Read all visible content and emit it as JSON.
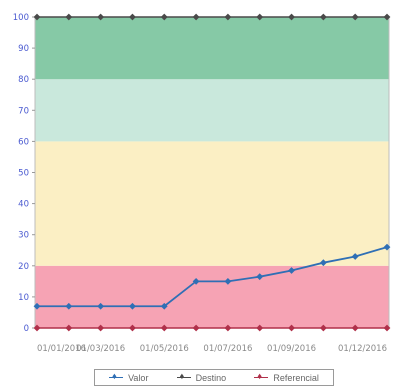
{
  "chart_data": {
    "type": "line",
    "y_ticks": [
      "0",
      "10",
      "20",
      "30",
      "40",
      "50",
      "60",
      "70",
      "80",
      "90",
      "100"
    ],
    "x_ticks": [
      "01/01/2016",
      "01/03/2016",
      "01/05/2016",
      "01/07/2016",
      "01/09/2016",
      "01/12/2016"
    ],
    "ylim": [
      0,
      100
    ],
    "bands": [
      {
        "from": 0,
        "to": 20,
        "color": "#f6a3b4"
      },
      {
        "from": 20,
        "to": 60,
        "color": "#fbefc4"
      },
      {
        "from": 60,
        "to": 80,
        "color": "#c9e8dc"
      },
      {
        "from": 80,
        "to": 100,
        "color": "#86c9a6"
      }
    ],
    "series": [
      {
        "name": "Valor",
        "color": "#2f6fb5",
        "values": [
          7,
          7,
          7,
          7,
          7,
          15,
          15,
          16.5,
          18.5,
          21,
          23,
          26
        ]
      },
      {
        "name": "Destino",
        "color": "#4a4a4a",
        "values": [
          100,
          100,
          100,
          100,
          100,
          100,
          100,
          100,
          100,
          100,
          100,
          100
        ]
      },
      {
        "name": "Referencial",
        "color": "#b0304a",
        "values": [
          0,
          0,
          0,
          0,
          0,
          0,
          0,
          0,
          0,
          0,
          0,
          0
        ]
      }
    ],
    "grid": false,
    "legend_position": "bottom"
  }
}
